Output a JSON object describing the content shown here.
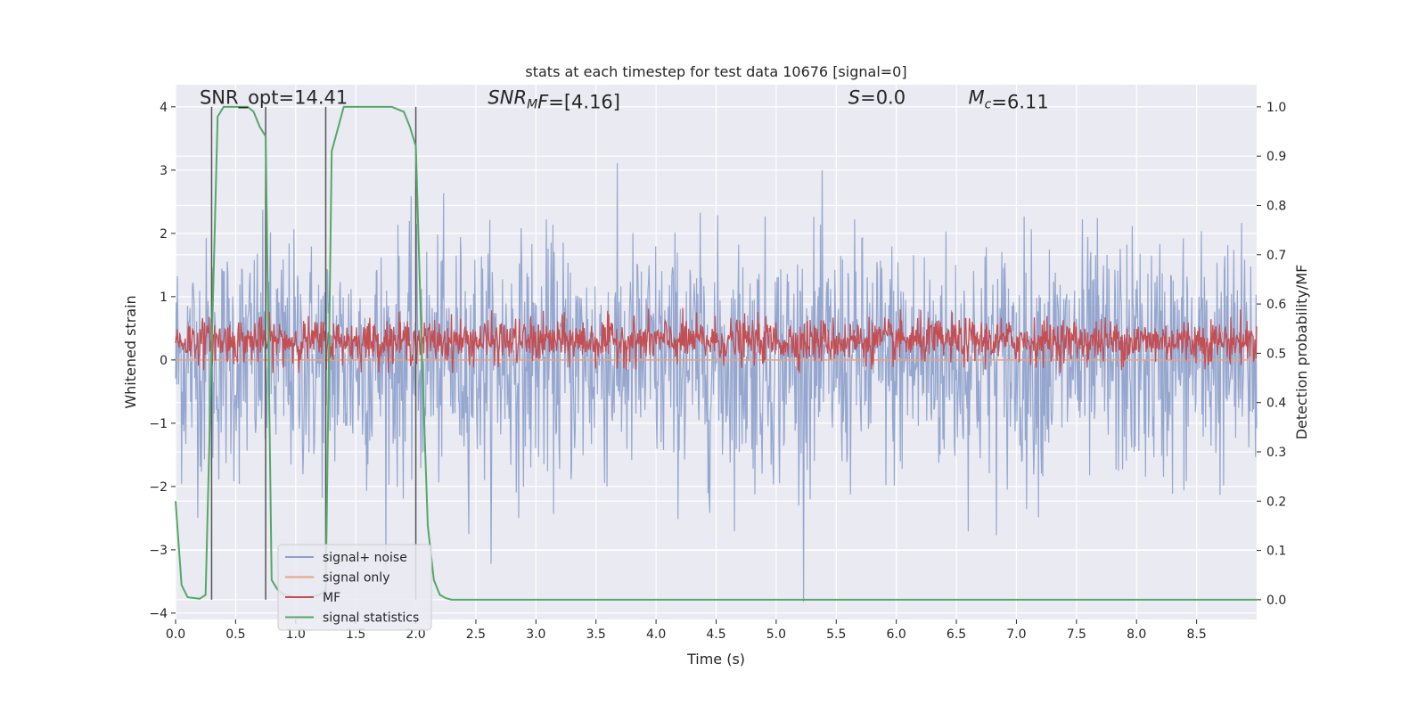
{
  "chart_data": {
    "type": "line",
    "title": "stats at each timestep for test data 10676 [signal=0]",
    "xlabel": "Time (s)",
    "ylabel_left": "Whitened strain",
    "ylabel_right": "Detection probability/MF",
    "xlim": [
      0,
      9.0
    ],
    "ylim_left": [
      -4.1,
      4.35
    ],
    "ylim_right": [
      -0.04,
      1.045
    ],
    "x_ticks": [
      0.0,
      0.5,
      1.0,
      1.5,
      2.0,
      2.5,
      3.0,
      3.5,
      4.0,
      4.5,
      5.0,
      5.5,
      6.0,
      6.5,
      7.0,
      7.5,
      8.0,
      8.5
    ],
    "x_tick_labels": [
      "0.0",
      "0.5",
      "1.0",
      "1.5",
      "2.0",
      "2.5",
      "3.0",
      "3.5",
      "4.0",
      "4.5",
      "5.0",
      "5.5",
      "6.0",
      "6.5",
      "7.0",
      "7.5",
      "8.0",
      "8.5"
    ],
    "y_left_ticks": [
      4,
      3,
      2,
      1,
      0,
      -1,
      -2,
      -3,
      -4
    ],
    "y_left_tick_labels": [
      "4",
      "3",
      "2",
      "1",
      "0",
      "−1",
      "−2",
      "−3",
      "−4"
    ],
    "y_right_ticks": [
      1.0,
      0.9,
      0.8,
      0.7,
      0.6,
      0.5,
      0.4,
      0.3,
      0.2,
      0.1,
      0.0
    ],
    "y_right_tick_labels": [
      "1.0",
      "0.9",
      "0.8",
      "0.7",
      "0.6",
      "0.5",
      "0.4",
      "0.3",
      "0.2",
      "0.1",
      "0.0"
    ],
    "grid": true,
    "legend_position": "lower-left",
    "annotations": [
      {
        "parts": [
          {
            "t": "SNR_opt=14.41",
            "i": false
          }
        ],
        "x": 0.2,
        "y": 4.05
      },
      {
        "parts": [
          {
            "t": "SNR",
            "i": true
          },
          {
            "t": "M",
            "i": true,
            "sub": true
          },
          {
            "t": "F",
            "i": true
          },
          {
            "t": "=[4.16]",
            "i": false
          }
        ],
        "x": 2.6,
        "y": 4.05
      },
      {
        "parts": [
          {
            "t": "S",
            "i": true
          },
          {
            "t": "=0.0",
            "i": false
          }
        ],
        "x": 5.6,
        "y": 4.05
      },
      {
        "parts": [
          {
            "t": "M",
            "i": true
          },
          {
            "t": "c",
            "i": true,
            "sub": true
          },
          {
            "t": "=6.11",
            "i": false
          }
        ],
        "x": 6.6,
        "y": 4.05
      }
    ],
    "series": [
      {
        "name": "signal+ noise",
        "color": "#8da0cb",
        "axis": "left",
        "style": "noise",
        "n_samples": 1800,
        "amplitude": 0.95
      },
      {
        "name": "signal only",
        "color": "#e8a37f",
        "axis": "left",
        "values_constant": 0.0
      },
      {
        "name": "MF",
        "color": "#c44e52",
        "axis": "right",
        "style": "noise-band",
        "range": [
          0.48,
          0.57
        ]
      },
      {
        "name": "signal statistics",
        "color": "#55a868",
        "axis": "right",
        "x": [
          0.0,
          0.05,
          0.1,
          0.2,
          0.25,
          0.3,
          0.35,
          0.4,
          0.45,
          0.5,
          0.55,
          0.6,
          0.65,
          0.7,
          0.75,
          0.8,
          0.85,
          0.9,
          1.0,
          1.1,
          1.2,
          1.25,
          1.3,
          1.4,
          1.5,
          1.6,
          1.7,
          1.8,
          1.9,
          1.95,
          2.0,
          2.05,
          2.1,
          2.15,
          2.2,
          2.25,
          2.3,
          2.5,
          3.0,
          4.0,
          5.0,
          6.0,
          7.0,
          8.0,
          9.0
        ],
        "values": [
          0.2,
          0.03,
          0.005,
          0.002,
          0.01,
          0.5,
          0.98,
          1.0,
          1.0,
          1.0,
          1.0,
          1.0,
          0.99,
          0.96,
          0.94,
          0.04,
          0.02,
          0.01,
          0.005,
          0.005,
          0.01,
          0.02,
          0.91,
          1.0,
          1.0,
          1.0,
          1.0,
          1.0,
          0.99,
          0.96,
          0.92,
          0.5,
          0.15,
          0.04,
          0.01,
          0.003,
          0.0,
          0.0,
          0.0,
          0.0,
          0.0,
          0.0,
          0.0,
          0.0,
          0.0
        ]
      },
      {
        "name": "",
        "color": "#555555",
        "axis": "right",
        "style": "vlines",
        "x": [
          0.3,
          0.75,
          1.25,
          2.0
        ],
        "range": [
          0.0,
          1.0
        ]
      }
    ]
  }
}
